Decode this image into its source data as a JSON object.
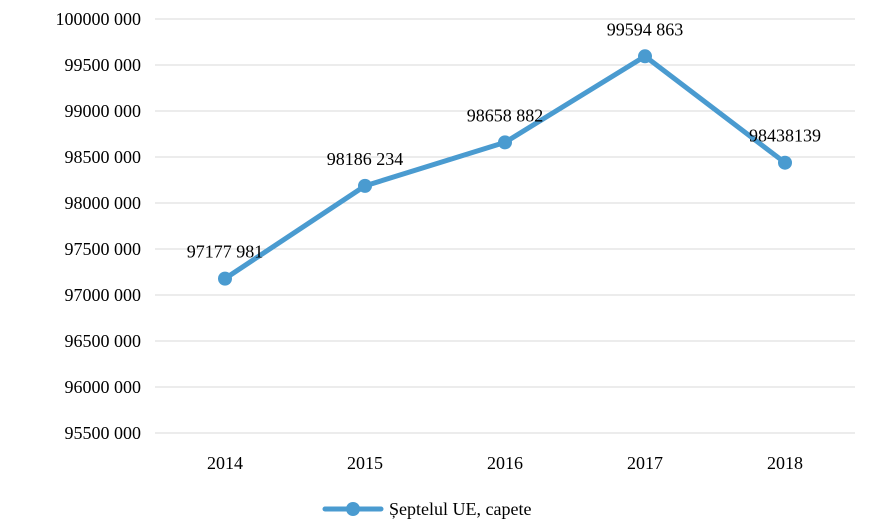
{
  "chart_data": {
    "type": "line",
    "title": "",
    "xlabel": "",
    "ylabel": "",
    "categories": [
      "2014",
      "2015",
      "2016",
      "2017",
      "2018"
    ],
    "series": [
      {
        "name": "Șeptelul UE, capete",
        "values": [
          97177981,
          98186234,
          98658882,
          99594863,
          98438139
        ],
        "data_labels": [
          "97177 981",
          "98186 234",
          "98658 882",
          "99594 863",
          "98438139"
        ],
        "color": "#4a9bd0"
      }
    ],
    "ylim": [
      95500000,
      100000000
    ],
    "y_ticks": [
      95500000,
      96000000,
      96500000,
      97000000,
      97500000,
      98000000,
      98500000,
      99000000,
      99500000,
      100000000
    ],
    "y_tick_labels": [
      "95500 000",
      "96000 000",
      "96500 000",
      "97000 000",
      "97500 000",
      "98000 000",
      "98500 000",
      "99000 000",
      "99500 000",
      "100000 000"
    ],
    "grid": true,
    "legend_position": "bottom"
  }
}
